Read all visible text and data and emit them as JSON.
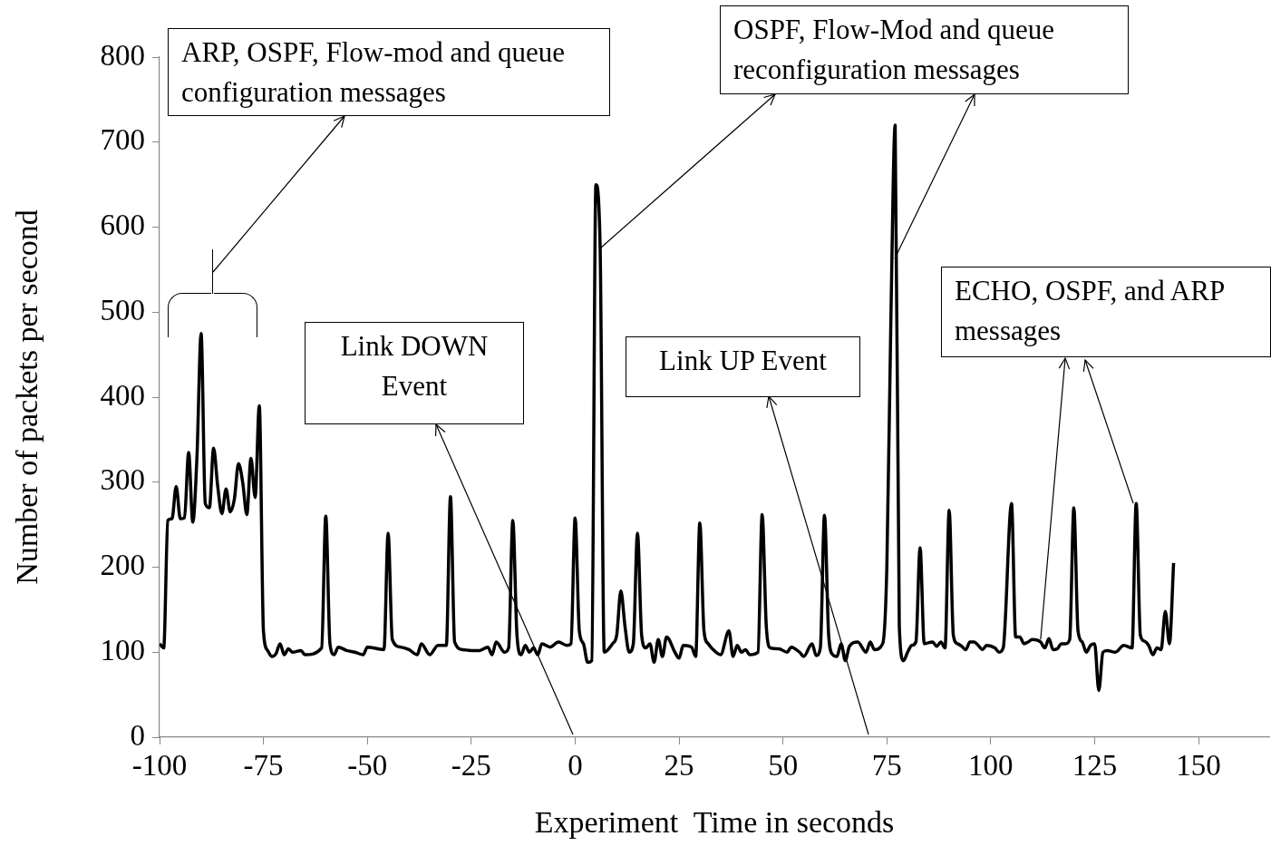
{
  "chart_data": {
    "type": "line",
    "xlabel": "Experiment  Time in seconds",
    "ylabel": "Number of packets per second",
    "xlim": [
      -100,
      167
    ],
    "xticks": [
      -100,
      -75,
      -50,
      -25,
      0,
      25,
      50,
      75,
      100,
      125,
      150
    ],
    "ylim": [
      0,
      800
    ],
    "yticks": [
      0,
      100,
      200,
      300,
      400,
      500,
      600,
      700,
      800
    ],
    "grid": false,
    "legend": false,
    "x": [
      -100,
      -99,
      -98,
      -97,
      -96,
      -95,
      -94,
      -93,
      -92,
      -91,
      -90,
      -89,
      -88,
      -87,
      -86,
      -85,
      -84,
      -83,
      -82,
      -81,
      -80,
      -79,
      -78,
      -77,
      -76,
      -75,
      -74,
      -73,
      -72,
      -71,
      -70,
      -69,
      -68,
      -66,
      -65,
      -61,
      -60,
      -59,
      -58,
      -57,
      -55,
      -53,
      -51,
      -50,
      -46,
      -45,
      -44,
      -42,
      -40,
      -38,
      -37,
      -35,
      -33,
      -31,
      -30,
      -29,
      -27,
      -25,
      -23,
      -21,
      -20,
      -19,
      -17,
      -16,
      -15,
      -14,
      -13,
      -12,
      -11,
      -10,
      -9,
      -8,
      -6,
      -4,
      -2,
      -1,
      0,
      1,
      2,
      3,
      4,
      5,
      6,
      7,
      9,
      10,
      11,
      12,
      13,
      14,
      15,
      16,
      17,
      18,
      19,
      20,
      21,
      22,
      24,
      25,
      26,
      28,
      29,
      30,
      31,
      32,
      33,
      35,
      37,
      38,
      39,
      40,
      41,
      42,
      44,
      45,
      46,
      47,
      49,
      51,
      52,
      54,
      55,
      57,
      58,
      59,
      60,
      61,
      62,
      63,
      64,
      65,
      66,
      68,
      70,
      71,
      72,
      74,
      75,
      76,
      77,
      78,
      79,
      80,
      81,
      82,
      83,
      84,
      86,
      87,
      88,
      89,
      90,
      91,
      92,
      93,
      94,
      95,
      96,
      97,
      98,
      99,
      101,
      102,
      103,
      105,
      106,
      107,
      108,
      109,
      110,
      112,
      113,
      114,
      115,
      116,
      117,
      118,
      119,
      120,
      121,
      122,
      123,
      124,
      125,
      126,
      127,
      128,
      130,
      132,
      134,
      135,
      136,
      137,
      138,
      139,
      140,
      141,
      142,
      143,
      144
    ],
    "series": [
      {
        "color": "#000000",
        "values": [
          110,
          105,
          255,
          257,
          295,
          257,
          258,
          335,
          253,
          330,
          475,
          275,
          270,
          340,
          295,
          263,
          292,
          265,
          280,
          322,
          300,
          262,
          328,
          282,
          390,
          125,
          102,
          95,
          98,
          110,
          97,
          104,
          100,
          102,
          97,
          105,
          260,
          110,
          97,
          106,
          102,
          100,
          97,
          106,
          103,
          240,
          115,
          106,
          103,
          97,
          110,
          97,
          108,
          108,
          283,
          112,
          103,
          102,
          102,
          106,
          97,
          112,
          100,
          105,
          255,
          120,
          97,
          108,
          100,
          105,
          97,
          110,
          106,
          112,
          108,
          110,
          258,
          125,
          110,
          88,
          90,
          650,
          580,
          100,
          110,
          120,
          172,
          130,
          100,
          110,
          240,
          120,
          105,
          110,
          88,
          115,
          95,
          118,
          100,
          93,
          108,
          106,
          95,
          252,
          125,
          110,
          104,
          97,
          125,
          95,
          108,
          100,
          103,
          97,
          100,
          262,
          130,
          105,
          104,
          100,
          106,
          100,
          95,
          110,
          96,
          105,
          261,
          120,
          97,
          95,
          110,
          90,
          107,
          112,
          100,
          112,
          103,
          110,
          200,
          500,
          720,
          130,
          90,
          100,
          108,
          112,
          223,
          110,
          112,
          107,
          112,
          105,
          267,
          120,
          110,
          107,
          103,
          112,
          112,
          108,
          103,
          108,
          105,
          100,
          105,
          275,
          118,
          118,
          110,
          112,
          115,
          112,
          105,
          116,
          103,
          104,
          110,
          110,
          115,
          270,
          125,
          112,
          100,
          108,
          110,
          55,
          100,
          102,
          100,
          108,
          105,
          275,
          120,
          113,
          108,
          97,
          105,
          103,
          148,
          110,
          205
        ]
      }
    ],
    "annotations": [
      "ARP, OSPF, Flow-mod and queue configuration messages",
      {
        "text": "OSPF, Flow-Mod and queue reconfiguration messages",
        "x": 6,
        "y": 575
      },
      {
        "text": "ECHO, OSPF, and ARP messages",
        "x": 112,
        "y": 115
      },
      "Link DOWN Event",
      "Link UP Event"
    ]
  }
}
